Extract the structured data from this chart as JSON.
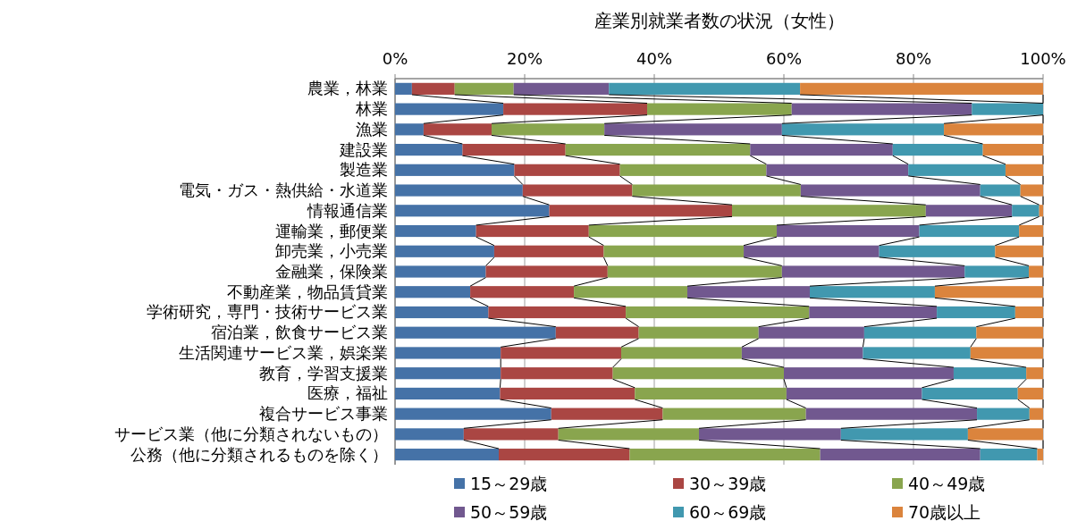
{
  "chart_data": {
    "type": "bar",
    "title": "産業別就業者数の状況（女性）",
    "orientation": "horizontal",
    "stacked": true,
    "categories": [
      "農業，林業",
      "林業",
      "漁業",
      "建設業",
      "製造業",
      "電気・ガス・熱供給・水道業",
      "情報通信業",
      "運輸業，郵便業",
      "卸売業，小売業",
      "金融業，保険業",
      "不動産業，物品賃貸業",
      "学術研究，専門・技術サービス業",
      "宿泊業，飲食サービス業",
      "生活関連サービス業，娯楽業",
      "教育，学習支援業",
      "医療，福祉",
      "複合サービス事業",
      "サービス業（他に分類されないもの）",
      "公務（他に分類されるものを除く）"
    ],
    "series": [
      {
        "name": "15～29歳",
        "color": "#4572a7",
        "values": [
          2.6,
          16.7,
          4.4,
          10.4,
          18.4,
          19.7,
          23.8,
          12.5,
          15.3,
          14.0,
          11.6,
          14.4,
          24.8,
          16.3,
          16.3,
          16.2,
          24.1,
          10.6,
          16.0
        ]
      },
      {
        "name": "30～39歳",
        "color": "#aa4643",
        "values": [
          6.6,
          22.2,
          10.5,
          15.9,
          16.3,
          16.9,
          28.2,
          17.4,
          16.9,
          18.8,
          16.0,
          21.2,
          12.8,
          18.6,
          17.3,
          20.8,
          17.2,
          14.6,
          20.2
        ]
      },
      {
        "name": "40～49歳",
        "color": "#89a54e",
        "values": [
          9.1,
          22.3,
          17.4,
          28.5,
          22.6,
          26.0,
          29.9,
          29.0,
          21.6,
          26.9,
          17.5,
          28.3,
          18.5,
          18.6,
          26.4,
          23.4,
          22.1,
          21.7,
          29.4
        ]
      },
      {
        "name": "50～59歳",
        "color": "#71588f",
        "values": [
          14.7,
          27.8,
          27.4,
          22.0,
          21.9,
          27.7,
          13.3,
          22.0,
          20.9,
          28.2,
          18.9,
          19.7,
          16.3,
          18.7,
          26.2,
          20.9,
          26.4,
          21.9,
          24.7
        ]
      },
      {
        "name": "60～69歳",
        "color": "#4198af",
        "values": [
          29.5,
          11.0,
          25.0,
          13.9,
          15.0,
          6.2,
          4.2,
          15.4,
          17.9,
          9.9,
          19.3,
          12.1,
          17.3,
          16.6,
          11.2,
          14.8,
          8.1,
          19.6,
          8.8
        ]
      },
      {
        "name": "70歳以上",
        "color": "#db843d",
        "values": [
          37.5,
          0,
          15.3,
          9.3,
          5.8,
          3.5,
          0.6,
          3.7,
          7.4,
          2.2,
          16.7,
          4.3,
          10.3,
          11.2,
          2.6,
          3.9,
          2.1,
          11.6,
          0.9
        ]
      }
    ],
    "xlim": [
      0,
      100
    ],
    "xticks": [
      {
        "value": 0,
        "label": "0%"
      },
      {
        "value": 20,
        "label": "20%"
      },
      {
        "value": 40,
        "label": "40%"
      },
      {
        "value": 60,
        "label": "60%"
      },
      {
        "value": 80,
        "label": "80%"
      },
      {
        "value": 100,
        "label": "100%"
      }
    ],
    "grid": "x",
    "legend": "bottom"
  }
}
